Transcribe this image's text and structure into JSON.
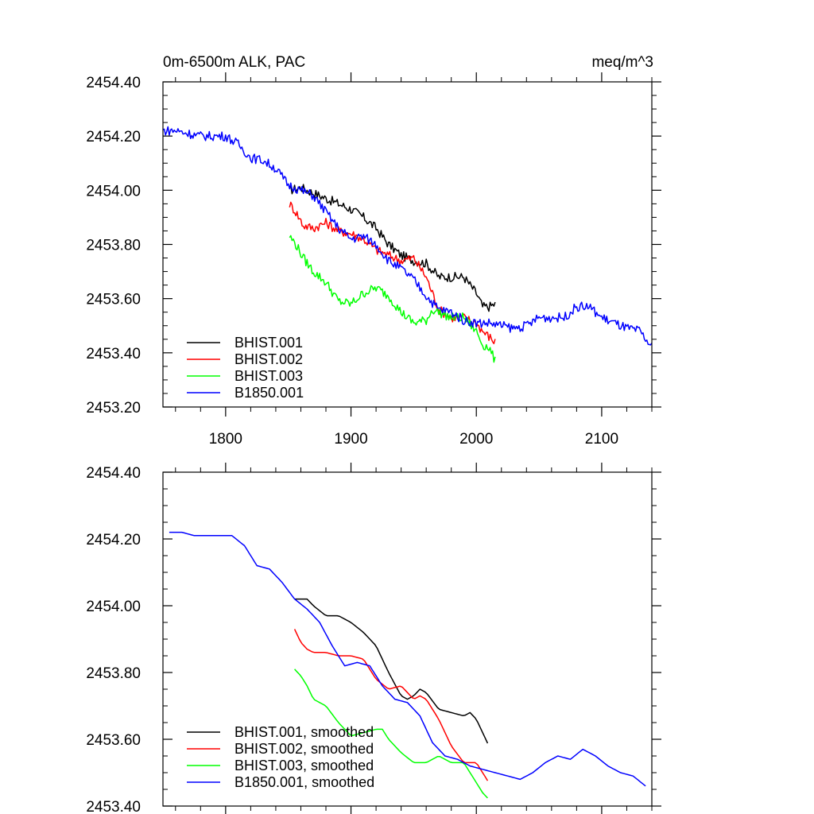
{
  "chart_data": [
    {
      "type": "line",
      "title": "0m-6500m ALK, PAC",
      "units": "meq/m^3",
      "xlim": [
        1750,
        2140
      ],
      "ylim": [
        2453.2,
        2454.4
      ],
      "xticks": [
        1800,
        1900,
        2000,
        2100
      ],
      "yticks": [
        2453.2,
        2453.4,
        2453.6,
        2453.8,
        2454.0,
        2454.2,
        2454.4
      ],
      "ytick_labels": [
        "2453.20",
        "2453.40",
        "2453.60",
        "2453.80",
        "2454.00",
        "2454.20",
        "2454.40"
      ],
      "xtick_labels": [
        "1800",
        "1900",
        "2000",
        "2100"
      ],
      "legend": "bottom-left",
      "series": [
        {
          "name": "BHIST.001",
          "color": "#000000",
          "x": [
            1851,
            1860,
            1870,
            1880,
            1890,
            1900,
            1910,
            1920,
            1930,
            1940,
            1950,
            1960,
            1970,
            1980,
            1990,
            2000,
            2005,
            2010,
            2015
          ],
          "y": [
            2454.0,
            2454.01,
            2453.99,
            2453.97,
            2453.95,
            2453.93,
            2453.9,
            2453.86,
            2453.8,
            2453.76,
            2453.74,
            2453.73,
            2453.68,
            2453.68,
            2453.68,
            2453.62,
            2453.57,
            2453.57,
            2453.58
          ]
        },
        {
          "name": "BHIST.002",
          "color": "#ff0000",
          "x": [
            1851,
            1856,
            1862,
            1870,
            1880,
            1890,
            1900,
            1910,
            1920,
            1930,
            1940,
            1950,
            1960,
            1970,
            1980,
            1990,
            2000,
            2005,
            2010,
            2015
          ],
          "y": [
            2453.95,
            2453.92,
            2453.87,
            2453.86,
            2453.88,
            2453.85,
            2453.84,
            2453.82,
            2453.78,
            2453.76,
            2453.74,
            2453.75,
            2453.68,
            2453.56,
            2453.53,
            2453.53,
            2453.51,
            2453.48,
            2453.46,
            2453.44
          ]
        },
        {
          "name": "BHIST.003",
          "color": "#00ff00",
          "x": [
            1851,
            1856,
            1862,
            1870,
            1880,
            1890,
            1900,
            1910,
            1920,
            1930,
            1940,
            1950,
            1960,
            1965,
            1970,
            1980,
            1990,
            2000,
            2005,
            2010,
            2015
          ],
          "y": [
            2453.83,
            2453.8,
            2453.75,
            2453.7,
            2453.66,
            2453.59,
            2453.58,
            2453.62,
            2453.64,
            2453.61,
            2453.55,
            2453.51,
            2453.52,
            2453.56,
            2453.55,
            2453.53,
            2453.53,
            2453.48,
            2453.43,
            2453.42,
            2453.37
          ]
        },
        {
          "name": "B1850.001",
          "color": "#0000ff",
          "x": [
            1750,
            1760,
            1770,
            1780,
            1790,
            1800,
            1810,
            1820,
            1830,
            1840,
            1850,
            1860,
            1870,
            1880,
            1890,
            1900,
            1910,
            1920,
            1930,
            1940,
            1950,
            1960,
            1970,
            1980,
            1990,
            2000,
            2010,
            2020,
            2030,
            2040,
            2050,
            2060,
            2070,
            2080,
            2090,
            2100,
            2110,
            2120,
            2130,
            2140
          ],
          "y": [
            2454.22,
            2454.22,
            2454.21,
            2454.2,
            2454.2,
            2454.2,
            2454.17,
            2454.12,
            2454.11,
            2454.08,
            2454.02,
            2454.0,
            2453.98,
            2453.92,
            2453.86,
            2453.82,
            2453.83,
            2453.8,
            2453.74,
            2453.71,
            2453.67,
            2453.61,
            2453.56,
            2453.55,
            2453.52,
            2453.51,
            2453.51,
            2453.5,
            2453.49,
            2453.5,
            2453.53,
            2453.53,
            2453.53,
            2453.57,
            2453.57,
            2453.53,
            2453.51,
            2453.49,
            2453.48,
            2453.42
          ]
        }
      ]
    },
    {
      "type": "line",
      "title": "",
      "xlim": [
        1750,
        2140
      ],
      "ylim": [
        2453.4,
        2454.4
      ],
      "xticks": [
        1800,
        1900,
        2000,
        2100
      ],
      "yticks": [
        2453.4,
        2453.6,
        2453.8,
        2454.0,
        2454.2,
        2454.4
      ],
      "ytick_labels": [
        "2453.40",
        "2453.60",
        "2453.80",
        "2454.00",
        "2454.20",
        "2454.40"
      ],
      "legend": "bottom-left",
      "series": [
        {
          "name": "BHIST.001, smoothed",
          "color": "#000000",
          "x": [
            1855,
            1860,
            1865,
            1870,
            1880,
            1890,
            1900,
            1910,
            1920,
            1930,
            1940,
            1945,
            1950,
            1955,
            1960,
            1970,
            1980,
            1990,
            1995,
            2000,
            2005,
            2010
          ],
          "y": [
            2454.02,
            2454.02,
            2454.02,
            2454.0,
            2453.97,
            2453.97,
            2453.95,
            2453.92,
            2453.88,
            2453.8,
            2453.73,
            2453.72,
            2453.73,
            2453.75,
            2453.74,
            2453.69,
            2453.68,
            2453.67,
            2453.68,
            2453.66,
            2453.62,
            2453.58
          ]
        },
        {
          "name": "BHIST.002, smoothed",
          "color": "#ff0000",
          "x": [
            1855,
            1860,
            1865,
            1870,
            1880,
            1890,
            1900,
            1910,
            1920,
            1930,
            1940,
            1950,
            1955,
            1960,
            1970,
            1980,
            1990,
            2000,
            2005,
            2010
          ],
          "y": [
            2453.93,
            2453.89,
            2453.87,
            2453.86,
            2453.86,
            2453.85,
            2453.85,
            2453.84,
            2453.78,
            2453.75,
            2453.76,
            2453.72,
            2453.73,
            2453.72,
            2453.66,
            2453.58,
            2453.53,
            2453.53,
            2453.5,
            2453.47
          ]
        },
        {
          "name": "BHIST.003, smoothed",
          "color": "#00ff00",
          "x": [
            1855,
            1860,
            1865,
            1870,
            1880,
            1890,
            1900,
            1910,
            1920,
            1925,
            1930,
            1940,
            1950,
            1960,
            1970,
            1980,
            1990,
            2000,
            2005,
            2010
          ],
          "y": [
            2453.81,
            2453.79,
            2453.76,
            2453.72,
            2453.7,
            2453.65,
            2453.61,
            2453.62,
            2453.63,
            2453.63,
            2453.6,
            2453.56,
            2453.53,
            2453.53,
            2453.55,
            2453.53,
            2453.53,
            2453.47,
            2453.44,
            2453.42
          ]
        },
        {
          "name": "B1850.001, smoothed",
          "color": "#0000ff",
          "x": [
            1755,
            1765,
            1775,
            1785,
            1795,
            1805,
            1815,
            1825,
            1835,
            1845,
            1855,
            1865,
            1875,
            1885,
            1895,
            1905,
            1915,
            1925,
            1935,
            1945,
            1955,
            1965,
            1975,
            1985,
            1995,
            2005,
            2015,
            2025,
            2035,
            2045,
            2055,
            2065,
            2075,
            2085,
            2095,
            2105,
            2115,
            2125,
            2135
          ],
          "y": [
            2454.22,
            2454.22,
            2454.21,
            2454.21,
            2454.21,
            2454.21,
            2454.18,
            2454.12,
            2454.11,
            2454.07,
            2454.02,
            2453.99,
            2453.95,
            2453.88,
            2453.82,
            2453.83,
            2453.82,
            2453.76,
            2453.72,
            2453.71,
            2453.67,
            2453.59,
            2453.55,
            2453.54,
            2453.52,
            2453.51,
            2453.5,
            2453.49,
            2453.48,
            2453.5,
            2453.53,
            2453.55,
            2453.54,
            2453.57,
            2453.55,
            2453.52,
            2453.5,
            2453.49,
            2453.46
          ]
        }
      ]
    }
  ]
}
